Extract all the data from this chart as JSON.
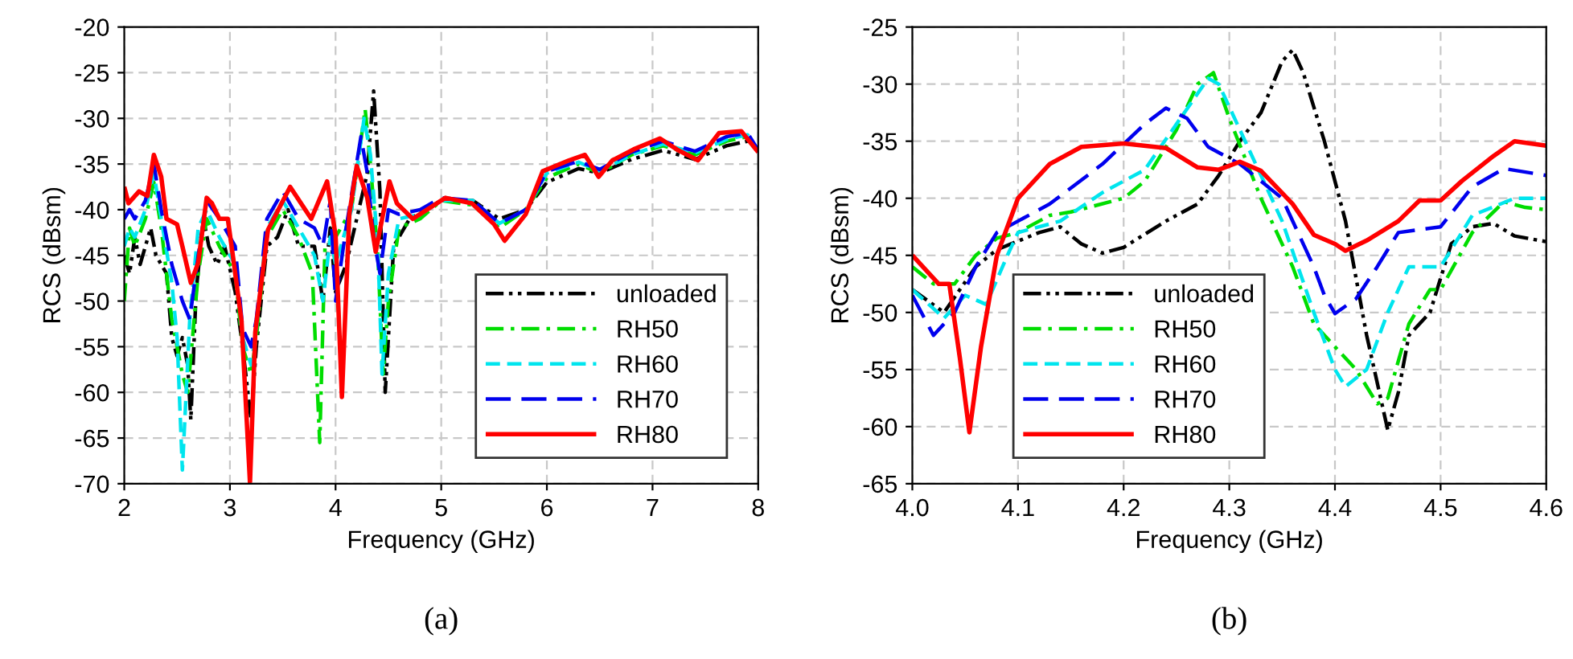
{
  "chart_data": [
    {
      "type": "line",
      "xlabel": "Frequency (GHz)",
      "ylabel": "RCS (dBsm)",
      "annotations": [
        "(a)"
      ],
      "xlim": [
        2,
        8
      ],
      "ylim": [
        -70,
        -20
      ],
      "xticks": [
        2,
        3,
        4,
        5,
        6,
        7,
        8
      ],
      "yticks": [
        -70,
        -65,
        -60,
        -55,
        -50,
        -45,
        -40,
        -35,
        -30,
        -25,
        -20
      ],
      "grid": true,
      "legend": "bottom right",
      "series": [
        {
          "name": "unloaded",
          "color": "#000000",
          "line_style": "dashdotdot",
          "x": [
            2.0,
            2.05,
            2.1,
            2.15,
            2.2,
            2.25,
            2.3,
            2.4,
            2.45,
            2.5,
            2.55,
            2.6,
            2.63,
            2.68,
            2.75,
            2.8,
            2.88,
            2.95,
            3.05,
            3.12,
            3.2,
            3.25,
            3.35,
            3.45,
            3.55,
            3.65,
            3.8,
            3.88,
            3.95,
            4.0,
            4.1,
            4.2,
            4.3,
            4.36,
            4.42,
            4.47,
            4.55,
            4.7,
            5.0,
            5.3,
            5.55,
            5.8,
            6.0,
            6.3,
            6.5,
            6.8,
            7.1,
            7.4,
            7.7,
            7.9,
            8.0
          ],
          "values": [
            -45,
            -47,
            -43,
            -46,
            -44,
            -42,
            -45,
            -47,
            -54,
            -56,
            -54,
            -57,
            -63,
            -49,
            -41,
            -44,
            -46,
            -44,
            -49,
            -55,
            -63,
            -55,
            -44,
            -43,
            -40,
            -44,
            -44,
            -50,
            -42,
            -49,
            -46,
            -41,
            -36,
            -27,
            -38,
            -60,
            -44,
            -41,
            -39,
            -39,
            -41,
            -40,
            -37,
            -35.5,
            -36,
            -34.5,
            -33.5,
            -34.5,
            -33,
            -32.5,
            -33.5
          ]
        },
        {
          "name": "RH50",
          "color": "#00dd00",
          "line_style": "dashdot",
          "x": [
            2.0,
            2.05,
            2.1,
            2.2,
            2.28,
            2.35,
            2.45,
            2.55,
            2.6,
            2.7,
            2.78,
            2.9,
            3.05,
            3.12,
            3.2,
            3.25,
            3.35,
            3.5,
            3.65,
            3.78,
            3.85,
            3.9,
            4.0,
            4.15,
            4.28,
            4.33,
            4.4,
            4.45,
            4.5,
            4.6,
            4.8,
            5.0,
            5.3,
            5.55,
            5.8,
            6.0,
            6.3,
            6.5,
            6.8,
            7.1,
            7.4,
            7.7,
            7.9,
            8.0
          ],
          "values": [
            -50,
            -42,
            -44,
            -41,
            -37,
            -42,
            -52,
            -58,
            -60,
            -47,
            -41,
            -44,
            -47,
            -55,
            -58,
            -54,
            -43,
            -40,
            -43,
            -47,
            -65.5,
            -44,
            -43,
            -40,
            -29,
            -35,
            -45,
            -58,
            -50,
            -42,
            -41,
            -39,
            -39.5,
            -42,
            -40,
            -36.5,
            -35,
            -36,
            -34,
            -33,
            -34,
            -32.5,
            -32,
            -33.5
          ]
        },
        {
          "name": "RH60",
          "color": "#00e5ee",
          "line_style": "dashed",
          "x": [
            2.0,
            2.05,
            2.1,
            2.2,
            2.28,
            2.35,
            2.45,
            2.5,
            2.55,
            2.62,
            2.7,
            2.78,
            2.9,
            3.05,
            3.12,
            3.2,
            3.25,
            3.35,
            3.5,
            3.65,
            3.8,
            3.88,
            3.95,
            4.0,
            4.15,
            4.27,
            4.33,
            4.4,
            4.44,
            4.5,
            4.6,
            4.8,
            5.0,
            5.3,
            5.55,
            5.8,
            6.0,
            6.3,
            6.5,
            6.8,
            7.1,
            7.4,
            7.7,
            7.9,
            8.0
          ],
          "values": [
            -44,
            -42,
            -43,
            -40,
            -36,
            -41,
            -48,
            -54,
            -68.5,
            -52,
            -42,
            -40,
            -43,
            -46,
            -54,
            -57,
            -53,
            -42,
            -39,
            -42,
            -45,
            -50,
            -43,
            -46,
            -40,
            -30,
            -34,
            -44,
            -58,
            -47,
            -41,
            -40.5,
            -39,
            -39,
            -41.5,
            -40,
            -36,
            -34.8,
            -35.8,
            -34,
            -32.8,
            -33.8,
            -32.3,
            -31.8,
            -33.5
          ]
        },
        {
          "name": "RH70",
          "color": "#0000ee",
          "line_style": "longdash",
          "x": [
            2.0,
            2.05,
            2.1,
            2.2,
            2.28,
            2.35,
            2.45,
            2.55,
            2.62,
            2.7,
            2.78,
            2.9,
            3.05,
            3.12,
            3.2,
            3.25,
            3.35,
            3.5,
            3.65,
            3.8,
            3.88,
            3.95,
            4.0,
            4.1,
            4.24,
            4.3,
            4.36,
            4.42,
            4.5,
            4.6,
            4.8,
            5.0,
            5.3,
            5.55,
            5.8,
            6.0,
            6.3,
            6.5,
            6.8,
            7.1,
            7.4,
            7.7,
            7.9,
            8.0
          ],
          "values": [
            -41,
            -40,
            -41,
            -39,
            -35,
            -40,
            -46,
            -50,
            -52,
            -45,
            -39,
            -41,
            -44,
            -53,
            -55,
            -52,
            -41,
            -38,
            -41,
            -42,
            -44,
            -39,
            -50,
            -42,
            -32,
            -36,
            -43,
            -47,
            -40,
            -40.5,
            -40,
            -38.7,
            -39,
            -41.5,
            -40,
            -35.8,
            -34.7,
            -35.6,
            -33.7,
            -32.5,
            -33.6,
            -32,
            -31.6,
            -33.5
          ]
        },
        {
          "name": "RH80",
          "color": "#ff0000",
          "line_style": "solid",
          "x": [
            2.0,
            2.04,
            2.14,
            2.22,
            2.28,
            2.35,
            2.4,
            2.5,
            2.55,
            2.63,
            2.7,
            2.78,
            2.83,
            2.9,
            2.98,
            3.03,
            3.11,
            3.19,
            3.24,
            3.36,
            3.57,
            3.77,
            3.92,
            4.0,
            4.06,
            4.13,
            4.2,
            4.3,
            4.38,
            4.51,
            4.58,
            4.73,
            5.04,
            5.29,
            5.5,
            5.6,
            5.8,
            5.96,
            6.21,
            6.36,
            6.49,
            6.62,
            6.82,
            7.07,
            7.23,
            7.43,
            7.63,
            7.84,
            8.0
          ],
          "values": [
            -37.5,
            -39.3,
            -38,
            -38.5,
            -34,
            -36.4,
            -41,
            -41.6,
            -44,
            -48,
            -45.8,
            -38.7,
            -39.3,
            -41,
            -41,
            -45.2,
            -52.2,
            -69.9,
            -53.4,
            -42.2,
            -37.5,
            -41,
            -36.9,
            -42.8,
            -60.5,
            -40.5,
            -35.2,
            -38.7,
            -44.6,
            -36.9,
            -39.3,
            -41,
            -38.7,
            -39.3,
            -41.6,
            -43.4,
            -40.5,
            -35.8,
            -34.6,
            -34,
            -36.4,
            -34.6,
            -33.4,
            -32.2,
            -33.4,
            -34.6,
            -31.6,
            -31.4,
            -33.7
          ]
        }
      ]
    },
    {
      "type": "line",
      "xlabel": "Frequency (GHz)",
      "ylabel": "RCS (dBsm)",
      "annotations": [
        "(b)"
      ],
      "xlim": [
        4.0,
        4.6
      ],
      "ylim": [
        -65,
        -25
      ],
      "xticks": [
        {
          "value": 4.0,
          "label": "4.0"
        },
        4.1,
        4.2,
        4.3,
        4.4,
        4.5,
        4.6
      ],
      "yticks": [
        -65,
        -60,
        -55,
        -50,
        -45,
        -40,
        -35,
        -30,
        -25
      ],
      "grid": true,
      "legend": "bottom left",
      "series": [
        {
          "name": "unloaded",
          "color": "#000000",
          "line_style": "dashdotdot",
          "x": [
            4.0,
            4.03,
            4.06,
            4.08,
            4.12,
            4.14,
            4.16,
            4.18,
            4.2,
            4.24,
            4.27,
            4.29,
            4.31,
            4.33,
            4.35,
            4.36,
            4.37,
            4.39,
            4.41,
            4.43,
            4.45,
            4.46,
            4.47,
            4.49,
            4.51,
            4.53,
            4.55,
            4.57,
            4.6
          ],
          "values": [
            -48,
            -50,
            -46,
            -44.5,
            -43,
            -42.5,
            -44,
            -44.8,
            -44.3,
            -42,
            -40.5,
            -38,
            -35,
            -32.5,
            -28,
            -27,
            -29,
            -35,
            -42,
            -52,
            -60.3,
            -57,
            -52,
            -50,
            -44,
            -42.5,
            -42.2,
            -43.3,
            -43.8
          ]
        },
        {
          "name": "RH50",
          "color": "#00dd00",
          "line_style": "dashdot",
          "x": [
            4.0,
            4.02,
            4.04,
            4.06,
            4.08,
            4.1,
            4.13,
            4.15,
            4.2,
            4.22,
            4.25,
            4.27,
            4.285,
            4.3,
            4.33,
            4.36,
            4.38,
            4.4,
            4.42,
            4.44,
            4.45,
            4.47,
            4.49,
            4.5,
            4.53,
            4.56,
            4.58,
            4.6
          ],
          "values": [
            -46,
            -47.5,
            -47.5,
            -45,
            -43.5,
            -43,
            -41.5,
            -41.2,
            -40,
            -38.5,
            -34,
            -30,
            -29,
            -33,
            -40,
            -46,
            -51,
            -53,
            -55,
            -58,
            -57.5,
            -51,
            -48,
            -48,
            -43,
            -40.3,
            -40.8,
            -41
          ]
        },
        {
          "name": "RH60",
          "color": "#00e5ee",
          "line_style": "dashed",
          "x": [
            4.0,
            4.03,
            4.05,
            4.07,
            4.09,
            4.1,
            4.14,
            4.18,
            4.22,
            4.25,
            4.28,
            4.29,
            4.31,
            4.35,
            4.38,
            4.4,
            4.41,
            4.43,
            4.45,
            4.47,
            4.5,
            4.53,
            4.57,
            4.6
          ],
          "values": [
            -48,
            -50.5,
            -48.5,
            -49.3,
            -45,
            -43,
            -42,
            -39.5,
            -37.5,
            -33.5,
            -29.5,
            -30,
            -34,
            -42,
            -50,
            -55,
            -56.5,
            -55,
            -50,
            -46,
            -46,
            -41.5,
            -40,
            -40
          ]
        },
        {
          "name": "RH70",
          "color": "#0000ee",
          "line_style": "longdash",
          "x": [
            4.0,
            4.02,
            4.04,
            4.06,
            4.08,
            4.1,
            4.13,
            4.18,
            4.22,
            4.24,
            4.26,
            4.28,
            4.31,
            4.35,
            4.38,
            4.39,
            4.4,
            4.42,
            4.44,
            4.46,
            4.5,
            4.53,
            4.56,
            4.6
          ],
          "values": [
            -48.5,
            -52,
            -50,
            -46,
            -43,
            -42,
            -40.5,
            -37,
            -33.5,
            -32.1,
            -33,
            -35.5,
            -37,
            -40,
            -46,
            -48.5,
            -50.1,
            -48.8,
            -46,
            -43,
            -42.5,
            -39,
            -37.4,
            -38
          ]
        },
        {
          "name": "RH80",
          "color": "#ff0000",
          "line_style": "solid",
          "x": [
            4.0,
            4.015,
            4.025,
            4.035,
            4.045,
            4.054,
            4.065,
            4.08,
            4.1,
            4.13,
            4.16,
            4.2,
            4.24,
            4.27,
            4.29,
            4.31,
            4.33,
            4.36,
            4.38,
            4.4,
            4.41,
            4.43,
            4.46,
            4.48,
            4.5,
            4.52,
            4.55,
            4.57,
            4.6
          ],
          "values": [
            -45,
            -46.5,
            -47.5,
            -47.5,
            -54,
            -60.5,
            -53,
            -45,
            -40,
            -37,
            -35.5,
            -35.2,
            -35.6,
            -37.3,
            -37.5,
            -36.8,
            -37.6,
            -40.5,
            -43.2,
            -44,
            -44.6,
            -43.7,
            -42,
            -40.2,
            -40.2,
            -38.5,
            -36.3,
            -35,
            -35.4
          ]
        }
      ]
    }
  ]
}
